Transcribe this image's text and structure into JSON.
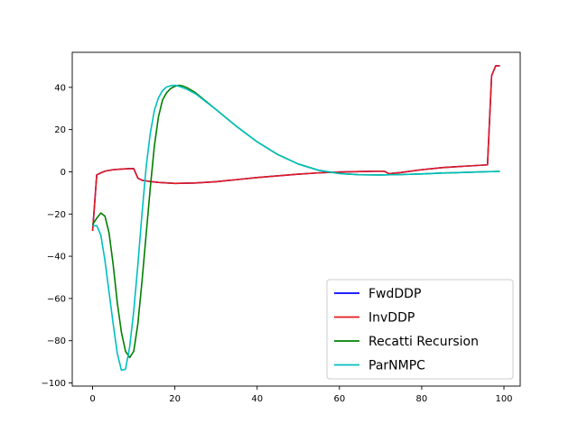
{
  "chart_data": {
    "type": "line",
    "title": "",
    "xlabel": "",
    "ylabel": "",
    "xlim": [
      -4.95,
      103.95
    ],
    "ylim": [
      -101.5,
      56.6
    ],
    "xticks": [
      0,
      20,
      40,
      60,
      80,
      100
    ],
    "yticks": [
      -100,
      -80,
      -60,
      -40,
      -20,
      0,
      20,
      40
    ],
    "grid": false,
    "legend_position": "lower-right",
    "series": [
      {
        "name": "FwdDDP",
        "color": "#0000ff",
        "points": [
          [
            0,
            -28
          ],
          [
            1,
            -1.5
          ],
          [
            2,
            -0.5
          ],
          [
            3,
            0.3
          ],
          [
            5,
            1.0
          ],
          [
            7,
            1.3
          ],
          [
            9,
            1.5
          ],
          [
            10,
            1.5
          ],
          [
            11,
            -3.0
          ],
          [
            12,
            -4.0
          ],
          [
            14,
            -4.6
          ],
          [
            16,
            -5.0
          ],
          [
            20,
            -5.5
          ],
          [
            25,
            -5.3
          ],
          [
            30,
            -4.7
          ],
          [
            35,
            -3.7
          ],
          [
            40,
            -2.7
          ],
          [
            45,
            -1.9
          ],
          [
            50,
            -1.1
          ],
          [
            55,
            -0.5
          ],
          [
            60,
            -0.1
          ],
          [
            65,
            0.1
          ],
          [
            70,
            0.3
          ],
          [
            71,
            0.2
          ],
          [
            72,
            -0.9
          ],
          [
            75,
            -0.3
          ],
          [
            80,
            1.0
          ],
          [
            85,
            2.0
          ],
          [
            90,
            2.6
          ],
          [
            96,
            3.3
          ],
          [
            97,
            45.5
          ],
          [
            98,
            50.2
          ],
          [
            99,
            50.2
          ]
        ]
      },
      {
        "name": "InvDDP",
        "color": "#e41a1c",
        "points": [
          [
            0,
            -28
          ],
          [
            1,
            -1.5
          ],
          [
            2,
            -0.5
          ],
          [
            3,
            0.3
          ],
          [
            5,
            1.0
          ],
          [
            7,
            1.3
          ],
          [
            9,
            1.5
          ],
          [
            10,
            1.5
          ],
          [
            11,
            -3.0
          ],
          [
            12,
            -4.0
          ],
          [
            14,
            -4.6
          ],
          [
            16,
            -5.0
          ],
          [
            20,
            -5.5
          ],
          [
            25,
            -5.3
          ],
          [
            30,
            -4.7
          ],
          [
            35,
            -3.7
          ],
          [
            40,
            -2.7
          ],
          [
            45,
            -1.9
          ],
          [
            50,
            -1.1
          ],
          [
            55,
            -0.5
          ],
          [
            60,
            -0.1
          ],
          [
            65,
            0.1
          ],
          [
            70,
            0.3
          ],
          [
            71,
            0.2
          ],
          [
            72,
            -0.9
          ],
          [
            75,
            -0.3
          ],
          [
            80,
            1.0
          ],
          [
            85,
            2.0
          ],
          [
            90,
            2.6
          ],
          [
            96,
            3.3
          ],
          [
            97,
            45.5
          ],
          [
            98,
            50.2
          ],
          [
            99,
            50.2
          ]
        ]
      },
      {
        "name": "Recatti Recursion",
        "color": "#008000",
        "points": [
          [
            0,
            -25
          ],
          [
            1,
            -22
          ],
          [
            2,
            -19.5
          ],
          [
            3,
            -21
          ],
          [
            4,
            -29
          ],
          [
            5,
            -44
          ],
          [
            6,
            -62
          ],
          [
            7,
            -76
          ],
          [
            8,
            -85
          ],
          [
            9,
            -88
          ],
          [
            10,
            -85
          ],
          [
            11,
            -72
          ],
          [
            12,
            -52
          ],
          [
            13,
            -30
          ],
          [
            14,
            -8
          ],
          [
            15,
            12
          ],
          [
            16,
            26
          ],
          [
            17,
            34
          ],
          [
            18,
            37.5
          ],
          [
            19,
            39.5
          ],
          [
            20,
            40.5
          ],
          [
            21,
            41
          ],
          [
            22,
            40.6
          ],
          [
            23,
            39.8
          ],
          [
            25,
            37.5
          ],
          [
            30,
            29.5
          ],
          [
            35,
            21.5
          ],
          [
            40,
            14.2
          ],
          [
            45,
            8.2
          ],
          [
            50,
            3.7
          ],
          [
            55,
            0.7
          ],
          [
            60,
            -0.8
          ],
          [
            65,
            -1.4
          ],
          [
            70,
            -1.5
          ],
          [
            75,
            -1.3
          ],
          [
            80,
            -1.0
          ],
          [
            85,
            -0.6
          ],
          [
            90,
            -0.3
          ],
          [
            95,
            0.0
          ],
          [
            99,
            0.2
          ]
        ]
      },
      {
        "name": "ParNMPC",
        "color": "#00bfbf",
        "points": [
          [
            0,
            -25.5
          ],
          [
            1,
            -25.5
          ],
          [
            2,
            -30
          ],
          [
            3,
            -42
          ],
          [
            4,
            -57
          ],
          [
            5,
            -72
          ],
          [
            6,
            -86
          ],
          [
            7,
            -94
          ],
          [
            8,
            -93.5
          ],
          [
            9,
            -83
          ],
          [
            10,
            -66
          ],
          [
            11,
            -44
          ],
          [
            12,
            -20
          ],
          [
            13,
            2
          ],
          [
            14,
            18
          ],
          [
            15,
            29
          ],
          [
            16,
            35
          ],
          [
            17,
            38.5
          ],
          [
            18,
            40.2
          ],
          [
            19,
            40.8
          ],
          [
            20,
            41
          ],
          [
            21,
            40.5
          ],
          [
            22,
            39.8
          ],
          [
            23,
            39
          ],
          [
            25,
            37
          ],
          [
            30,
            29.5
          ],
          [
            35,
            21.5
          ],
          [
            40,
            14.2
          ],
          [
            45,
            8.2
          ],
          [
            50,
            3.7
          ],
          [
            55,
            0.7
          ],
          [
            60,
            -0.8
          ],
          [
            65,
            -1.4
          ],
          [
            70,
            -1.5
          ],
          [
            75,
            -1.3
          ],
          [
            80,
            -1.0
          ],
          [
            85,
            -0.6
          ],
          [
            90,
            -0.3
          ],
          [
            95,
            0.0
          ],
          [
            99,
            0.2
          ]
        ]
      }
    ]
  }
}
